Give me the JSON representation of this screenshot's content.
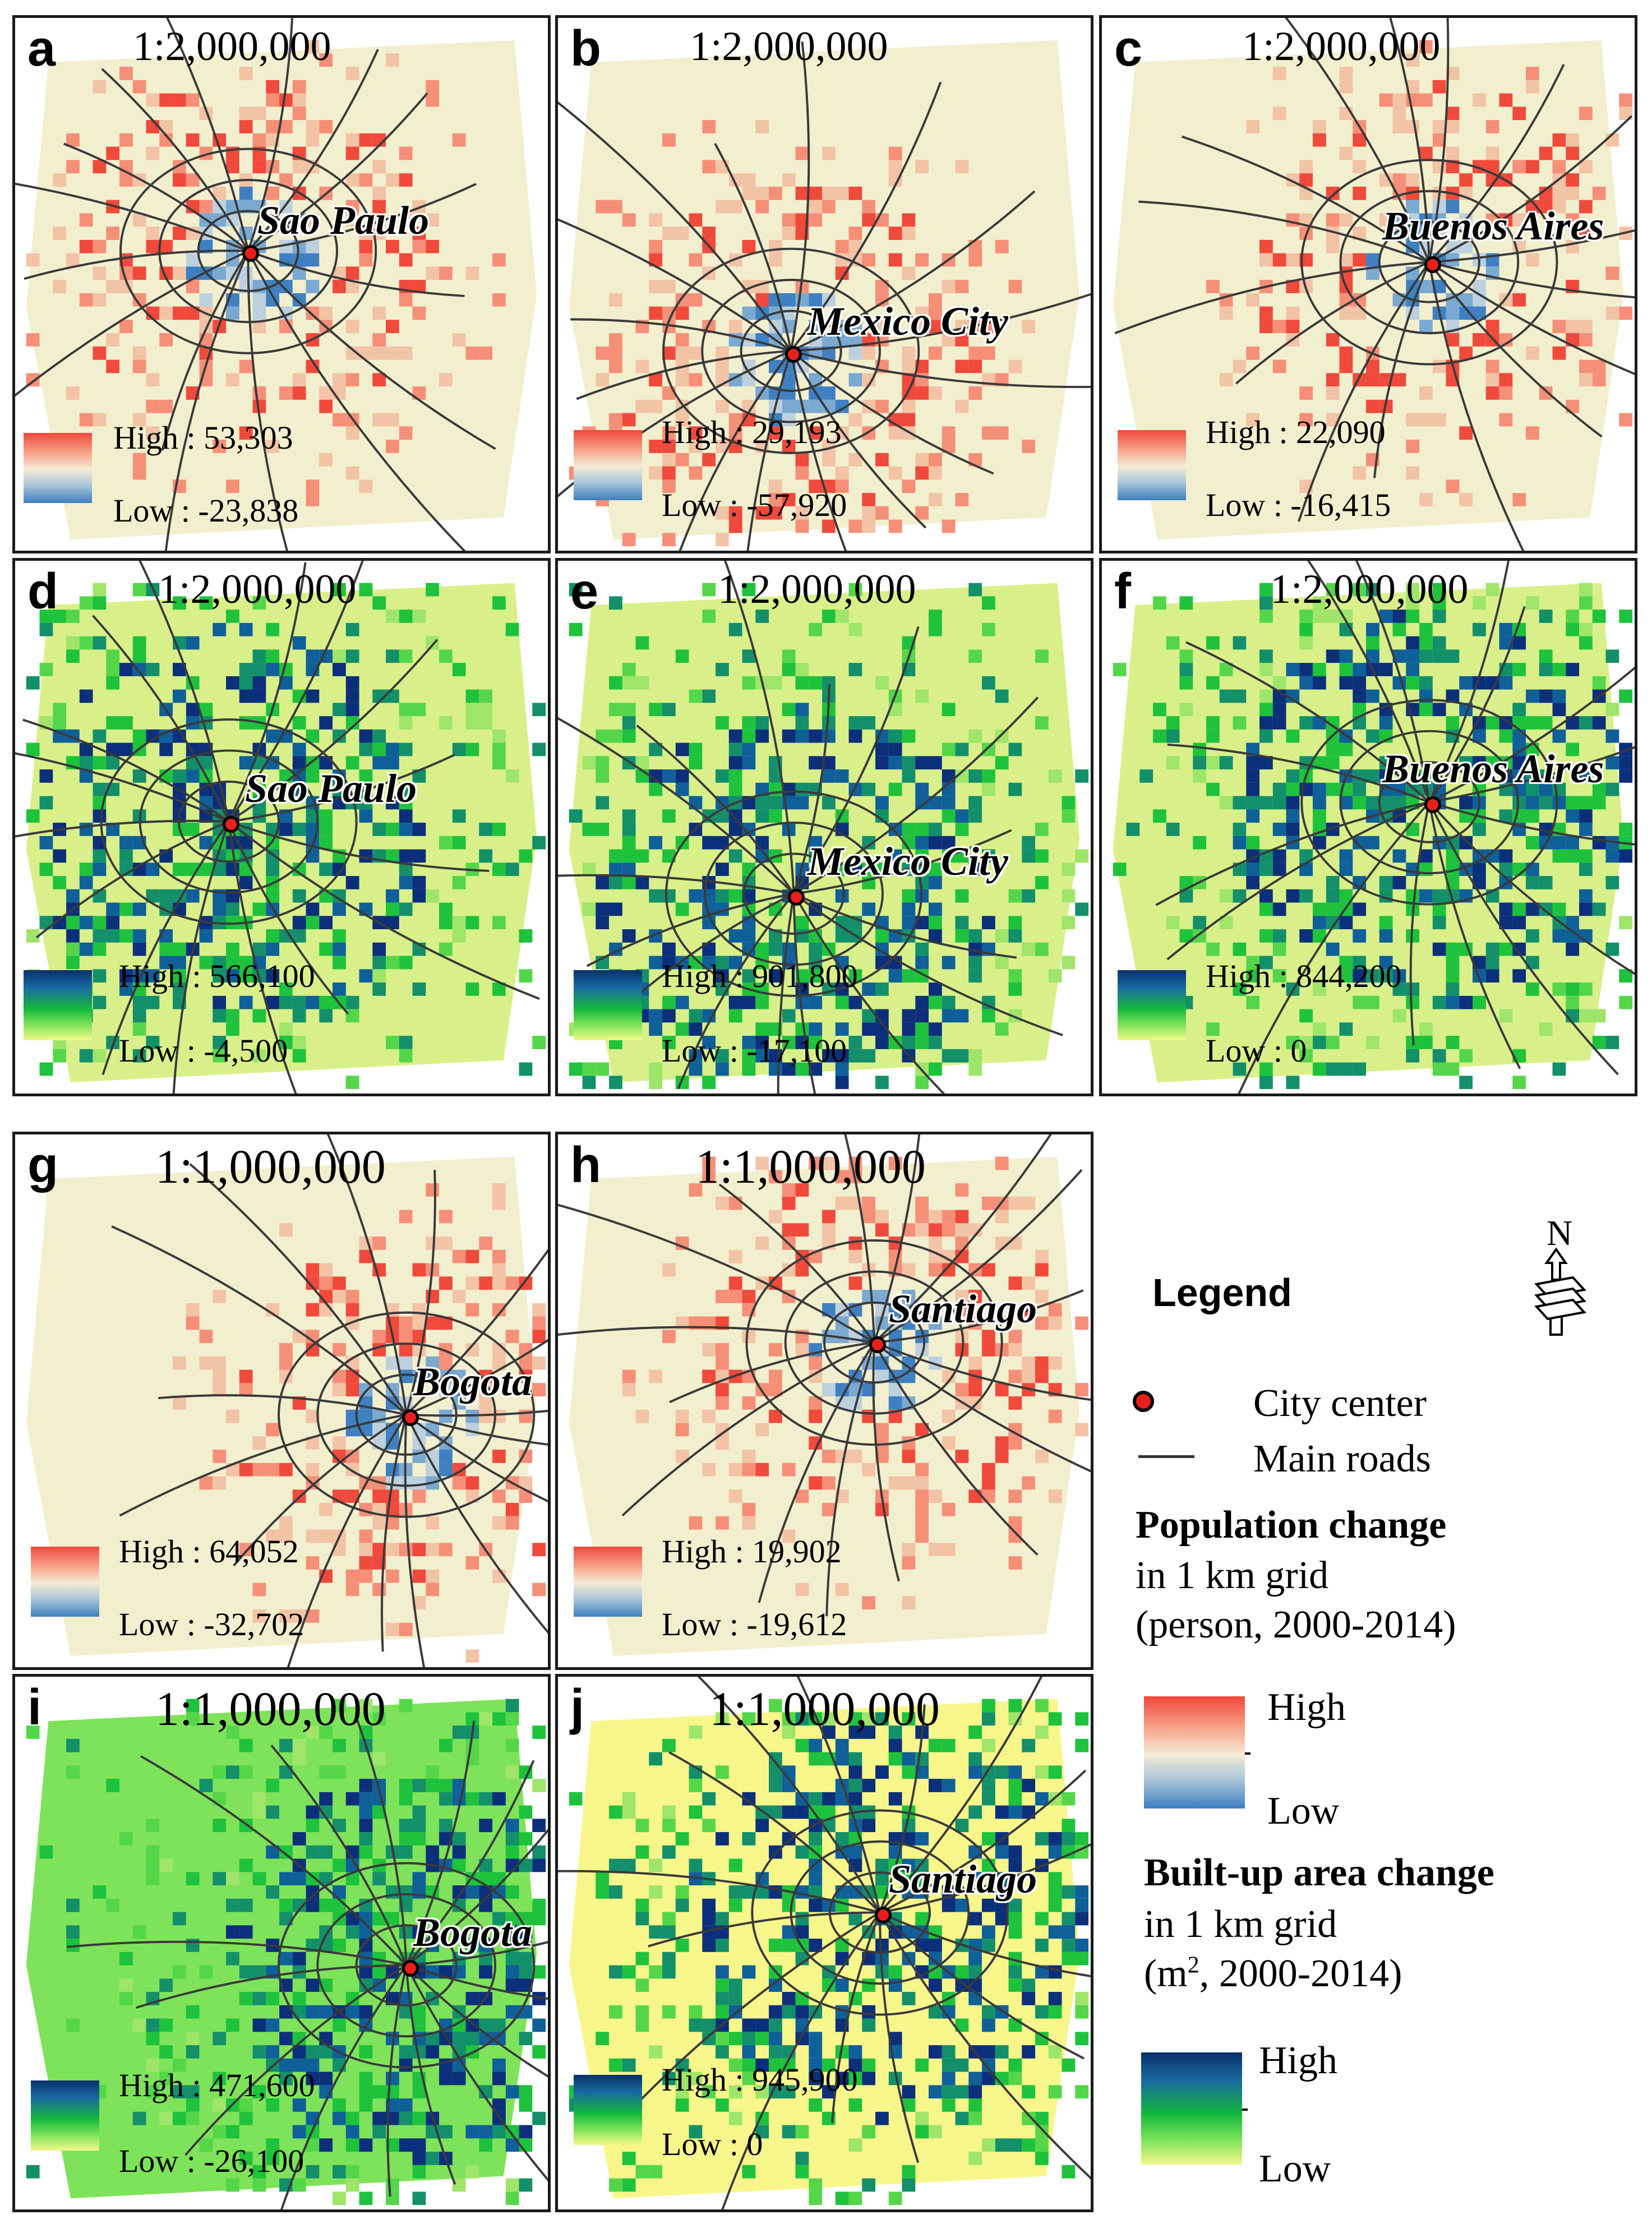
{
  "panels": {
    "a": {
      "label": "a",
      "scale": "1:2,000,000",
      "city": "Sao Paulo",
      "high": "High : 53,303",
      "low": "Low : -23,838"
    },
    "b": {
      "label": "b",
      "scale": "1:2,000,000",
      "city": "Mexico City",
      "high": "High : 29,193",
      "low": "Low : -57,920"
    },
    "c": {
      "label": "c",
      "scale": "1:2,000,000",
      "city": "Buenos Aires",
      "high": "High : 22,090",
      "low": "Low : -16,415"
    },
    "d": {
      "label": "d",
      "scale": "1:2,000,000",
      "city": "Sao Paulo",
      "high": "High : 566,100",
      "low": "Low : -4,500"
    },
    "e": {
      "label": "e",
      "scale": "1:2,000,000",
      "city": "Mexico City",
      "high": "High : 901,800",
      "low": "Low : -17,100"
    },
    "f": {
      "label": "f",
      "scale": "1:2,000,000",
      "city": "Buenos Aires",
      "high": "High : 844,200",
      "low": "Low : 0"
    },
    "g": {
      "label": "g",
      "scale": "1:1,000,000",
      "city": "Bogota",
      "high": "High : 64,052",
      "low": "Low : -32,702"
    },
    "h": {
      "label": "h",
      "scale": "1:1,000,000",
      "city": "Santiago",
      "high": "High : 19,902",
      "low": "Low : -19,612"
    },
    "i": {
      "label": "i",
      "scale": "1:1,000,000",
      "city": "Bogota",
      "high": "High : 471,600",
      "low": "Low : -26,100"
    },
    "j": {
      "label": "j",
      "scale": "1:1,000,000",
      "city": "Santiago",
      "high": "High : 945,900",
      "low": "Low : 0"
    }
  },
  "legend": {
    "title": "Legend",
    "north": "N",
    "city_center": "City center",
    "main_roads": "Main roads",
    "pop_title": "Population change",
    "pop_line1": "in 1 km grid",
    "pop_line2": "(person, 2000-2014)",
    "pop_high": "High",
    "pop_low": "Low",
    "bu_title": "Built-up area change",
    "bu_line1": "in 1 km grid",
    "bu_line2_pre": " (m",
    "bu_line2_sup": "2",
    "bu_line2_post": ", 2000-2014)",
    "bu_high": "High",
    "bu_low": "Low"
  },
  "colors": {
    "pop_high": "#f0483a",
    "pop_mid": "#f4ecd7",
    "pop_low": "#3f7fc0",
    "bu_high": "#08306b",
    "bu_mid": "#13b83c",
    "bu_low": "#f3f889",
    "city_dot": "#e8201c",
    "road": "#3a3a3a"
  }
}
